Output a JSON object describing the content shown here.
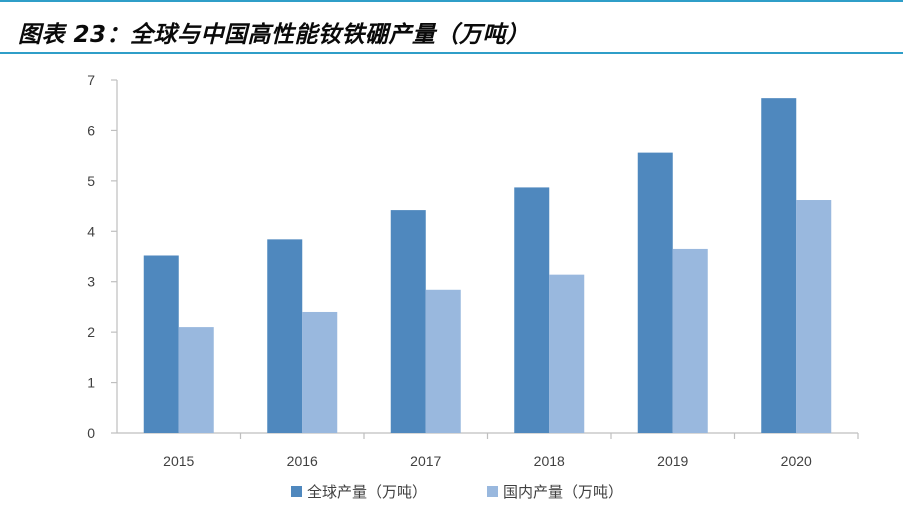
{
  "header": {
    "title": "图表 23：全球与中国高性能钕铁硼产量（万吨）"
  },
  "chart_data": {
    "type": "bar",
    "title": "图表 23：全球与中国高性能钕铁硼产量（万吨）",
    "categories": [
      "2015",
      "2016",
      "2017",
      "2018",
      "2019",
      "2020"
    ],
    "series": [
      {
        "name": "全球产量（万吨）",
        "color": "#4f88be",
        "values": [
          3.52,
          3.84,
          4.42,
          4.87,
          5.56,
          6.64
        ]
      },
      {
        "name": "国内产量（万吨）",
        "color": "#99b8de",
        "values": [
          2.1,
          2.4,
          2.84,
          3.14,
          3.65,
          4.62
        ]
      }
    ],
    "xlabel": "",
    "ylabel": "",
    "ylim": [
      0,
      7
    ],
    "yticks": [
      "0",
      "1",
      "2",
      "3",
      "4",
      "5",
      "6",
      "7"
    ],
    "grid": false,
    "legend_position": "bottom"
  }
}
